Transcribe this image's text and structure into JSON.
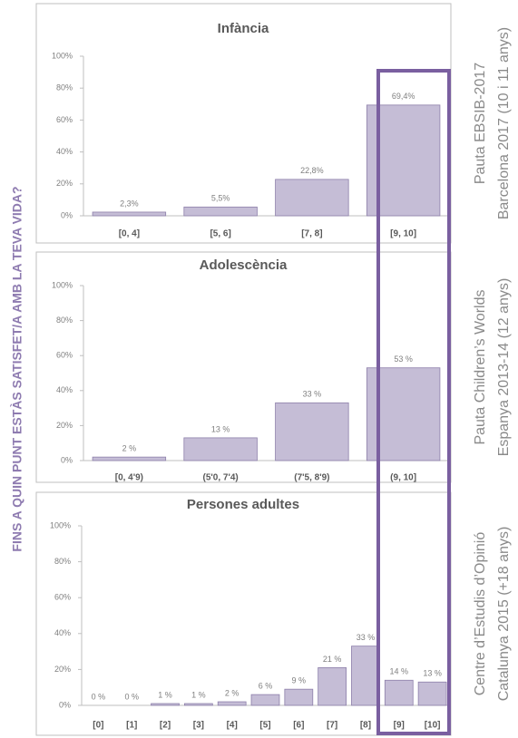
{
  "title": "FINS A QUIN PUNT ESTÀS SATISFET/A AMB LA TEVA VIDA?",
  "chart_data": [
    {
      "type": "bar",
      "title": "Infància",
      "annotations": [
        "Pauta EBSIB-2017",
        "Barcelona 2017 (10 i 11 anys)"
      ],
      "categories": [
        "[0, 4]",
        "[5, 6]",
        "[7, 8]",
        "[9, 10]"
      ],
      "values": [
        2.3,
        5.5,
        22.8,
        69.4
      ],
      "value_labels": [
        "2,3%",
        "5,5%",
        "22,8%",
        "69,4%"
      ],
      "color": "#c5bdd6",
      "ylim": [
        0,
        100
      ],
      "yticks": [
        {
          "value": 0,
          "label": "0%"
        },
        {
          "value": 20,
          "label": "20%"
        },
        {
          "value": 40,
          "label": "40%"
        },
        {
          "value": 60,
          "label": "60%"
        },
        {
          "value": 80,
          "label": "80%"
        },
        {
          "value": 100,
          "label": "100%"
        }
      ],
      "grid": false
    },
    {
      "type": "bar",
      "title": "Adolescència",
      "annotations": [
        "Pauta Children’s Worlds",
        "Espanya 2013-14 (12 anys)"
      ],
      "categories": [
        "[0, 4'9)",
        "(5'0, 7'4)",
        "(7'5, 8'9)",
        "(9, 10]"
      ],
      "values": [
        2,
        13,
        33,
        53
      ],
      "value_labels": [
        "2 %",
        "13 %",
        "33 %",
        "53 %"
      ],
      "color": "#c5bdd6",
      "ylim": [
        0,
        100
      ],
      "yticks": [
        {
          "value": 0,
          "label": "0%"
        },
        {
          "value": 20,
          "label": "20%"
        },
        {
          "value": 40,
          "label": "40%"
        },
        {
          "value": 60,
          "label": "60%"
        },
        {
          "value": 80,
          "label": "80%"
        },
        {
          "value": 100,
          "label": "100%"
        }
      ],
      "grid": false
    },
    {
      "type": "bar",
      "title": "Persones adultes",
      "annotations": [
        "Centre d’Estudis d’Opinió",
        "Catalunya 2015 (+18 anys)"
      ],
      "categories": [
        "[0]",
        "[1]",
        "[2]",
        "[3]",
        "[4]",
        "[5]",
        "[6]",
        "[7]",
        "[8]",
        "[9]",
        "[10]"
      ],
      "values": [
        0,
        0,
        1,
        1,
        2,
        6,
        9,
        21,
        33,
        14,
        13
      ],
      "value_labels": [
        "0 %",
        "0 %",
        "1 %",
        "1 %",
        "2 %",
        "6 %",
        "9 %",
        "21 %",
        "33 %",
        "14 %",
        "13 %"
      ],
      "color": "#c5bdd6",
      "ylim": [
        0,
        100
      ],
      "yticks": [
        {
          "value": 0,
          "label": "0%"
        },
        {
          "value": 20,
          "label": "20%"
        },
        {
          "value": 40,
          "label": "40%"
        },
        {
          "value": 60,
          "label": "60%"
        },
        {
          "value": 80,
          "label": "80%"
        },
        {
          "value": 100,
          "label": "100%"
        }
      ],
      "grid": false
    }
  ]
}
